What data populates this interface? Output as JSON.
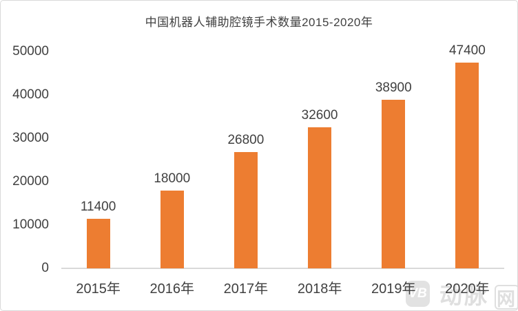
{
  "chart_data": {
    "type": "bar",
    "title": "中国机器人辅助腔镜手术数量2015-2020年",
    "categories": [
      "2015年",
      "2016年",
      "2017年",
      "2018年",
      "2019年",
      "2020年"
    ],
    "values": [
      11400,
      18000,
      26800,
      32600,
      38900,
      47400
    ],
    "data_labels_shown": true,
    "yticks": [
      0,
      10000,
      20000,
      30000,
      40000,
      50000
    ],
    "ylim": [
      0,
      50000
    ],
    "xlabel": "",
    "ylabel": "",
    "grid": false,
    "legend": "none"
  },
  "colors": {
    "bar": "#ED7D31",
    "axis_line": "#D9D9D9",
    "text": "#404040",
    "watermark": "#DFDFDF",
    "watermark_logo_bg": "#E2E2E2",
    "frame_border": "#D9D9D9"
  },
  "watermark": {
    "logo_glyph": "VB",
    "text_main": "动脉",
    "text_boxed": "网"
  }
}
